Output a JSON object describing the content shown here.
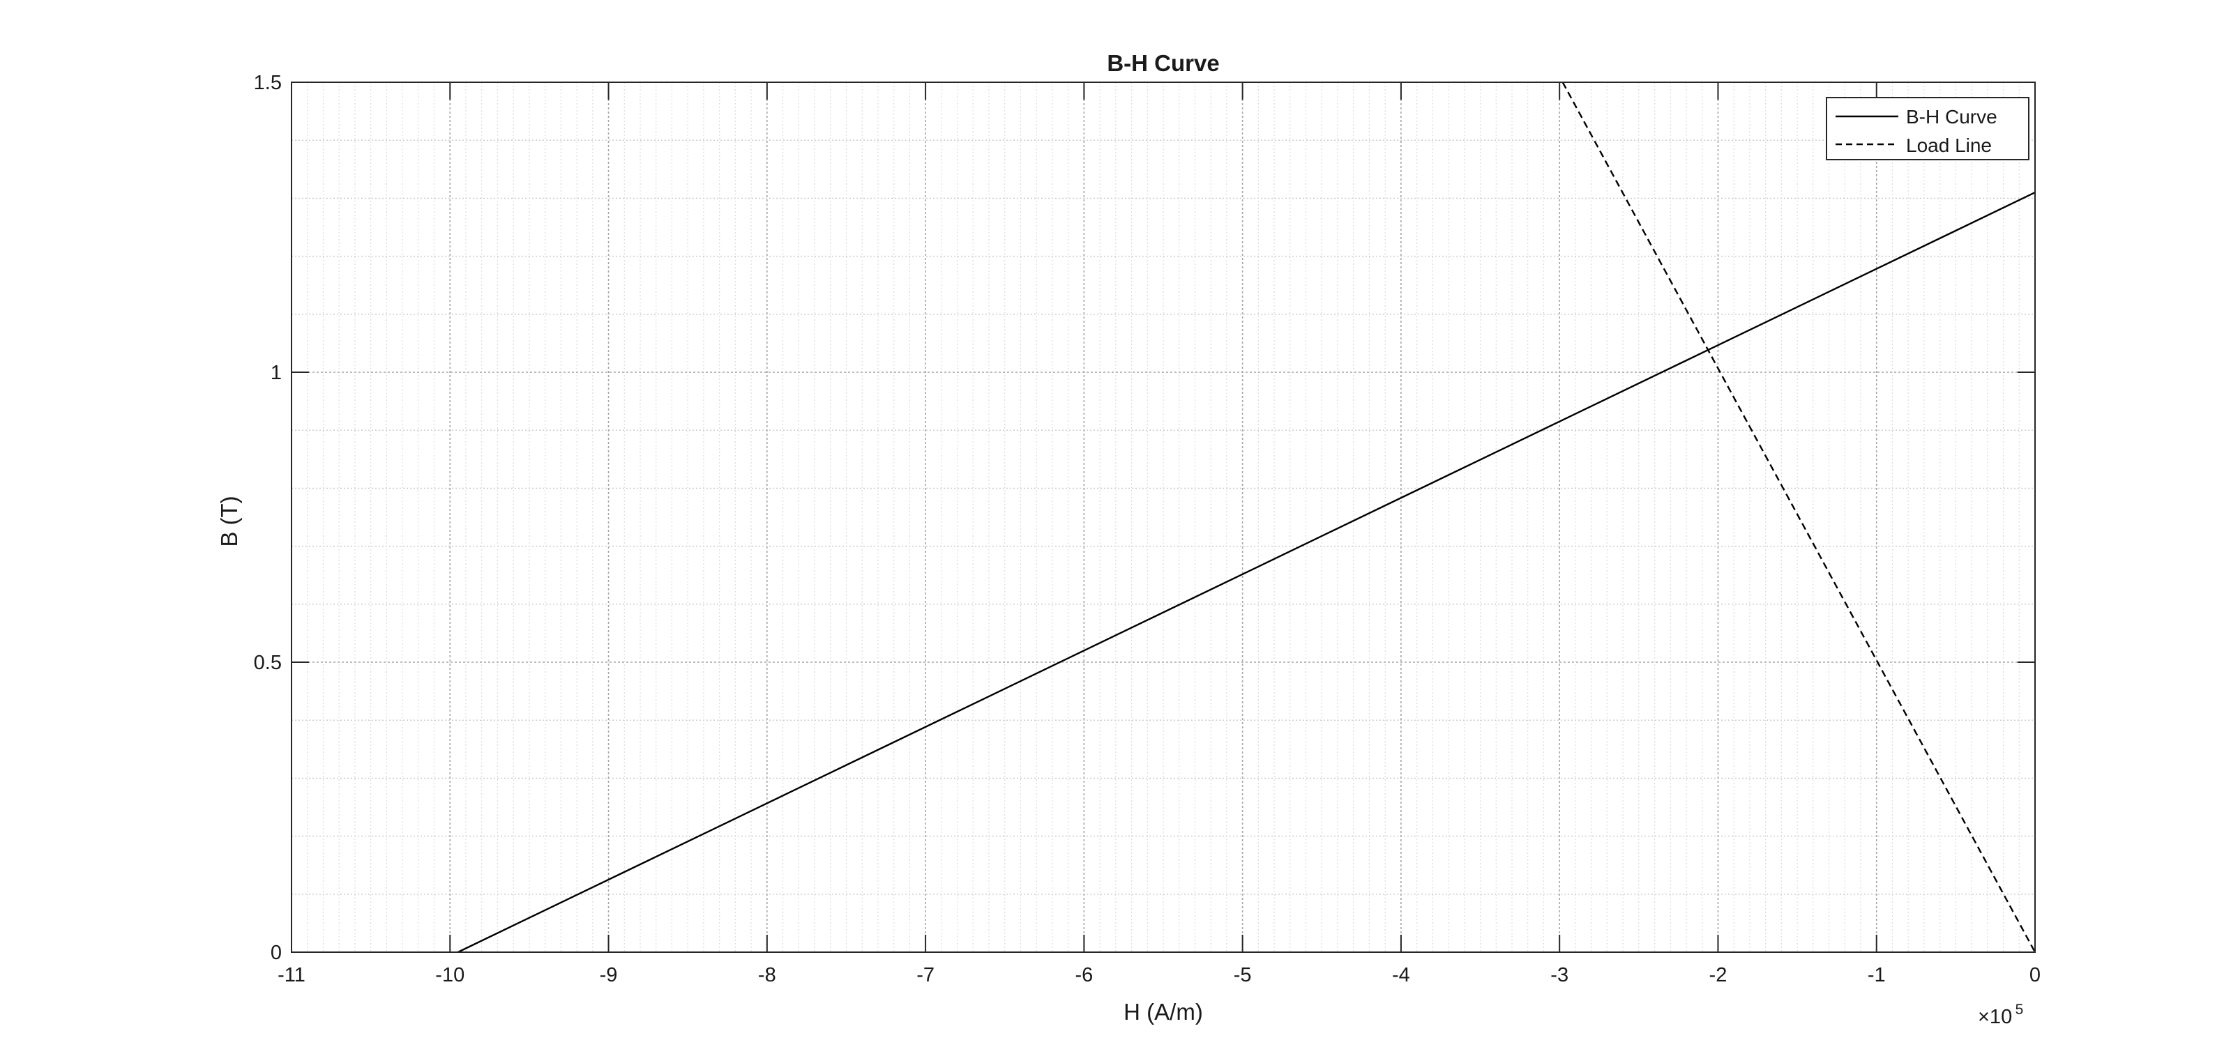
{
  "chart_data": {
    "type": "line",
    "title": "B-H Curve",
    "xlabel": "H (A/m)",
    "ylabel": "B (T)",
    "x_exponent_label": "×10",
    "x_exponent_power": "5",
    "xlim": [
      -11,
      0
    ],
    "ylim": [
      0,
      1.5
    ],
    "x_ticks": [
      -11,
      -10,
      -9,
      -8,
      -7,
      -6,
      -5,
      -4,
      -3,
      -2,
      -1,
      0
    ],
    "y_ticks": [
      0,
      0.5,
      1,
      1.5
    ],
    "x_tick_labels": [
      "-11",
      "-10",
      "-9",
      "-8",
      "-7",
      "-6",
      "-5",
      "-4",
      "-3",
      "-2",
      "-1",
      "0"
    ],
    "y_tick_labels": [
      "0",
      "0.5",
      "1",
      "1.5"
    ],
    "grid": true,
    "minor_grid": true,
    "legend_position": "top-right",
    "series": [
      {
        "name": "B-H Curve",
        "style": "solid",
        "color": "#000000",
        "x": [
          -9.95,
          0
        ],
        "y": [
          0,
          1.31
        ]
      },
      {
        "name": "Load Line",
        "style": "dashed",
        "color": "#000000",
        "x": [
          -2.98,
          0
        ],
        "y": [
          1.5,
          0
        ]
      }
    ]
  }
}
